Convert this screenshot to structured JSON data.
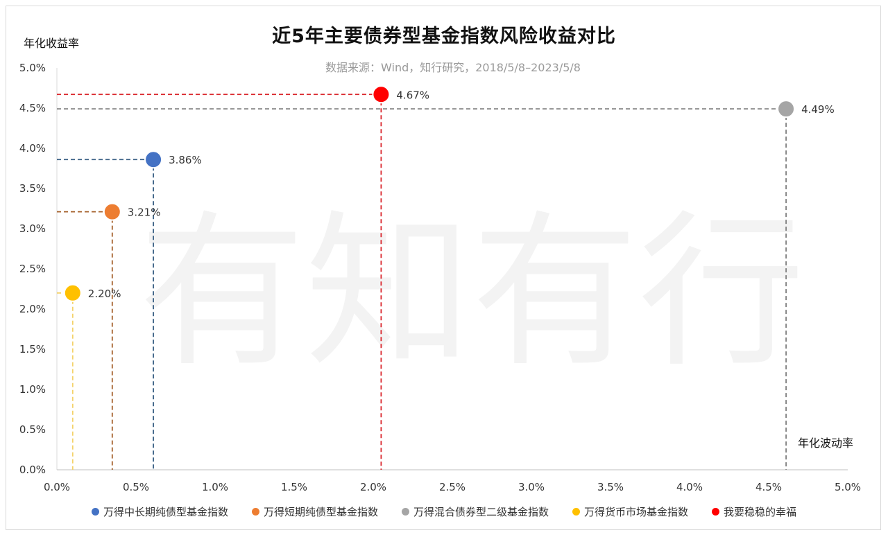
{
  "chart_data": {
    "type": "scatter",
    "title": "近5年主要债券型基金指数风险收益对比",
    "subtitle": "数据来源：Wind，知行研究，2018/5/8–2023/5/8",
    "xlabel": "年化波动率",
    "ylabel": "年化收益率",
    "watermark": "有知有行",
    "xlim": [
      0,
      5
    ],
    "ylim": [
      0,
      5
    ],
    "xticks": [
      "0.0%",
      "0.5%",
      "1.0%",
      "1.5%",
      "2.0%",
      "2.5%",
      "3.0%",
      "3.5%",
      "4.0%",
      "4.5%",
      "5.0%"
    ],
    "yticks": [
      "0.0%",
      "0.5%",
      "1.0%",
      "1.5%",
      "2.0%",
      "2.5%",
      "3.0%",
      "3.5%",
      "4.0%",
      "4.5%",
      "5.0%"
    ],
    "legend_position": "bottom",
    "grid": false,
    "series": [
      {
        "name": "万得中长期纯债型基金指数",
        "x": 0.61,
        "y": 3.86,
        "label": "3.86%",
        "color": "#4472c4",
        "line_color": "#3c6286"
      },
      {
        "name": "万得短期纯债型基金指数",
        "x": 0.35,
        "y": 3.21,
        "label": "3.21%",
        "color": "#ed7d31",
        "line_color": "#a5612c"
      },
      {
        "name": "万得混合债券型二级基金指数",
        "x": 4.61,
        "y": 4.49,
        "label": "4.49%",
        "color": "#a5a5a5",
        "line_color": "#7f7f7f"
      },
      {
        "name": "万得货币市场基金指数",
        "x": 0.1,
        "y": 2.2,
        "label": "2.20%",
        "color": "#ffc000",
        "line_color": "#f4d26a"
      },
      {
        "name": "我要稳稳的幸福",
        "x": 2.05,
        "y": 4.67,
        "label": "4.67%",
        "color": "#ff0000",
        "line_color": "#d9262c"
      }
    ]
  }
}
